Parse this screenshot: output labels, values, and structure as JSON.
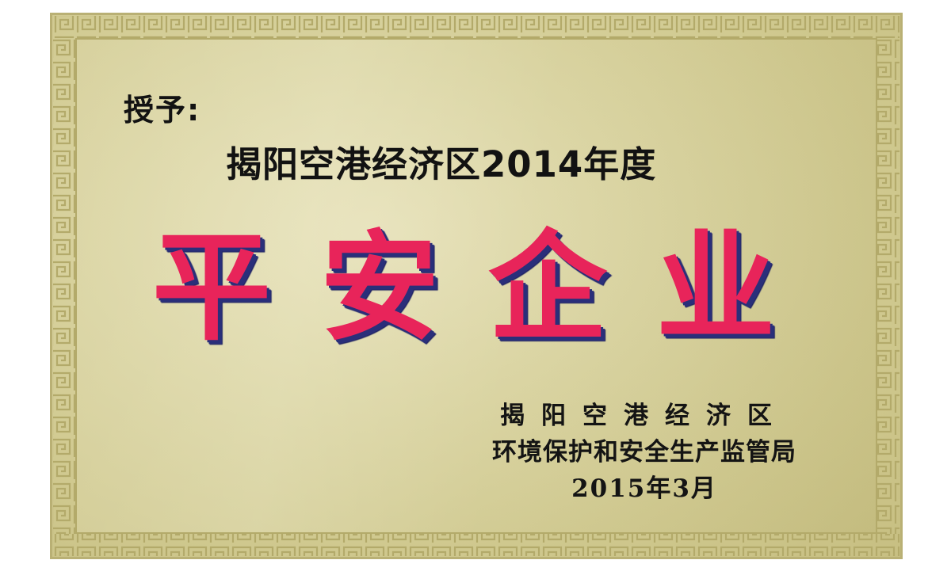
{
  "plaque": {
    "recipient_label": "授予:",
    "recipient_name": "揭阳空港经济区2014年度",
    "award_title": "平安企业",
    "issuer_line_1": "揭阳空港经济区",
    "issuer_line_2": "环境保护和安全生产监管局",
    "issue_date": "2015年3月"
  },
  "colors": {
    "plaque_gold": "#d9d3a0",
    "border_pattern": "#b3aa6a",
    "title_red": "#e8245a",
    "title_shadow_blue": "#2a2f7a",
    "text_black": "#121212"
  }
}
